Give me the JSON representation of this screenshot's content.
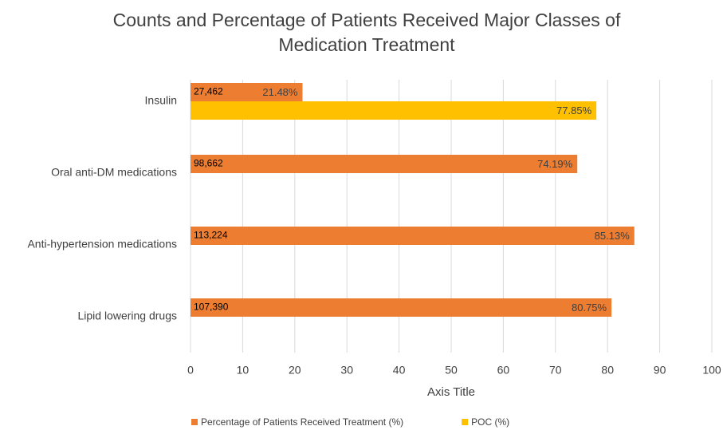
{
  "chart_data": {
    "type": "barh",
    "title": "Counts and Percentage of Patients Received Major Classes of Medication Treatment",
    "x_label": "Axis Title",
    "categories": [
      "Insulin",
      "Oral anti-DM medications",
      "Anti-hypertension medications",
      "Lipid lowering drugs"
    ],
    "series": [
      {
        "name": "Percentage of Patients Received Treatment (%)",
        "color": "#ed7d31",
        "values": [
          21.48,
          74.19,
          85.13,
          80.75
        ],
        "value_labels": [
          "21.48%",
          "74.19%",
          "85.13%",
          "80.75%"
        ],
        "count_labels": [
          "27,462",
          "98,662",
          "113,224",
          "107,390"
        ]
      },
      {
        "name": "POC (%)",
        "color": "#ffc000",
        "values": [
          77.85,
          null,
          null,
          null
        ],
        "value_labels": [
          "77.85%",
          null,
          null,
          null
        ]
      }
    ],
    "xlim": [
      0,
      100
    ],
    "xticks": [
      0,
      10,
      20,
      30,
      40,
      50,
      60,
      70,
      80,
      90,
      100
    ],
    "grid": true,
    "legend": "bottom"
  }
}
